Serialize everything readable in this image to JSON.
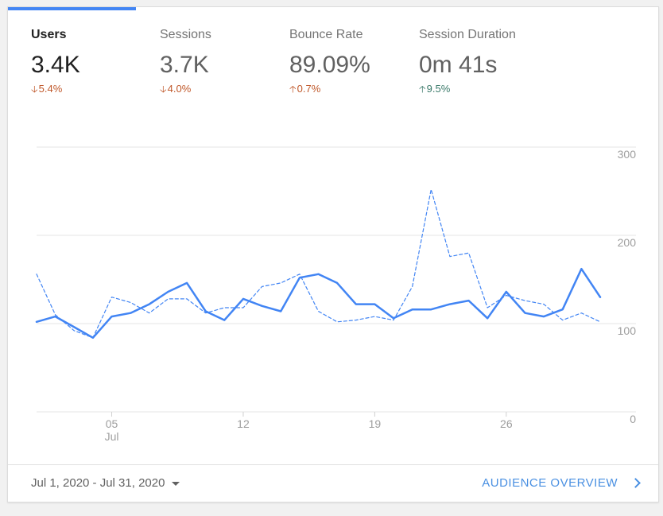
{
  "colors": {
    "accent": "#4285f4",
    "negative": "#c0582a",
    "positive": "#3b7a6a",
    "grid": "#e5e5e5",
    "axis_text": "#9e9e9e"
  },
  "metrics": [
    {
      "label": "Users",
      "value": "3.4K",
      "change": "5.4%",
      "direction": "down",
      "tone": "negative",
      "active": true
    },
    {
      "label": "Sessions",
      "value": "3.7K",
      "change": "4.0%",
      "direction": "down",
      "tone": "negative",
      "active": false
    },
    {
      "label": "Bounce Rate",
      "value": "89.09%",
      "change": "0.7%",
      "direction": "up",
      "tone": "negative",
      "active": false
    },
    {
      "label": "Session Duration",
      "value": "0m 41s",
      "change": "9.5%",
      "direction": "up",
      "tone": "positive",
      "active": false
    }
  ],
  "chart_data": {
    "type": "line",
    "x": [
      "Jul 1",
      "Jul 2",
      "Jul 3",
      "Jul 4",
      "Jul 5",
      "Jul 6",
      "Jul 7",
      "Jul 8",
      "Jul 9",
      "Jul 10",
      "Jul 11",
      "Jul 12",
      "Jul 13",
      "Jul 14",
      "Jul 15",
      "Jul 16",
      "Jul 17",
      "Jul 18",
      "Jul 19",
      "Jul 20",
      "Jul 21",
      "Jul 22",
      "Jul 23",
      "Jul 24",
      "Jul 25",
      "Jul 26",
      "Jul 27",
      "Jul 28",
      "Jul 29",
      "Jul 30",
      "Jul 31"
    ],
    "series": [
      {
        "style": "solid",
        "values": [
          102,
          108,
          96,
          84,
          108,
          112,
          122,
          136,
          146,
          114,
          104,
          128,
          120,
          114,
          152,
          156,
          146,
          122,
          122,
          106,
          116,
          116,
          122,
          126,
          106,
          136,
          112,
          108,
          116,
          162,
          130
        ]
      },
      {
        "style": "dashed",
        "values": [
          156,
          110,
          92,
          84,
          130,
          124,
          112,
          128,
          128,
          112,
          118,
          118,
          142,
          146,
          156,
          114,
          102,
          104,
          108,
          104,
          142,
          252,
          176,
          180,
          118,
          132,
          126,
          122,
          104,
          112,
          102
        ]
      }
    ],
    "x_tick_labels": [
      {
        "day": "05",
        "month": "Jul",
        "index": 4
      },
      {
        "day": "12",
        "month": "",
        "index": 11
      },
      {
        "day": "19",
        "month": "",
        "index": 18
      },
      {
        "day": "26",
        "month": "",
        "index": 25
      }
    ],
    "y_ticks": [
      "300",
      "200",
      "100",
      "0"
    ],
    "ylim": [
      0,
      300
    ],
    "grid": true
  },
  "footer": {
    "date_range": "Jul 1, 2020 - Jul 31, 2020",
    "link_label": "AUDIENCE OVERVIEW"
  }
}
